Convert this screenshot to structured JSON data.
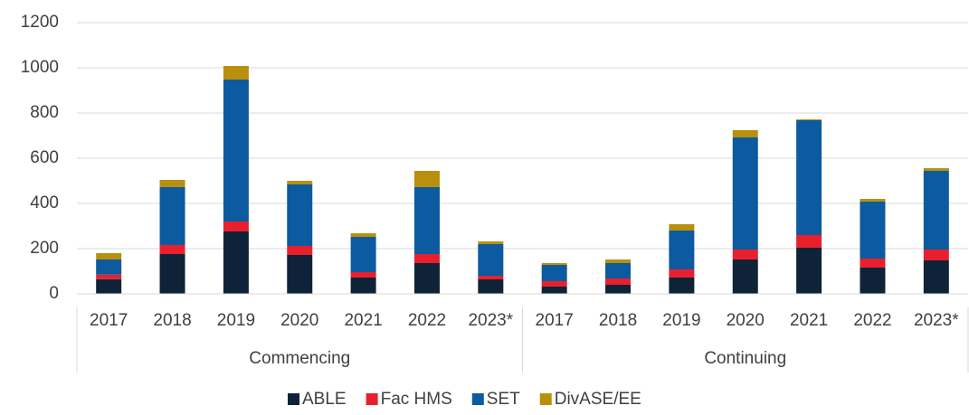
{
  "chart_data": {
    "type": "stacked_bar",
    "groups": [
      {
        "name": "Commencing",
        "categories": [
          "2017",
          "2018",
          "2019",
          "2020",
          "2021",
          "2022",
          "2023*"
        ]
      },
      {
        "name": "Continuing",
        "categories": [
          "2017",
          "2018",
          "2019",
          "2020",
          "2021",
          "2022",
          "2023*"
        ]
      }
    ],
    "series": [
      {
        "name": "ABLE",
        "color": "#0f2338",
        "values": [
          65,
          176,
          276,
          172,
          72,
          136,
          64,
          32,
          40,
          72,
          152,
          204,
          116,
          148
        ]
      },
      {
        "name": "Fac HMS",
        "color": "#e8202e",
        "values": [
          20,
          40,
          44,
          40,
          24,
          40,
          16,
          24,
          28,
          36,
          44,
          56,
          40,
          48
        ]
      },
      {
        "name": "SET",
        "color": "#0c5aa0",
        "values": [
          67,
          256,
          628,
          272,
          156,
          296,
          140,
          72,
          68,
          172,
          496,
          508,
          252,
          348
        ]
      },
      {
        "name": "DivASE/EE",
        "color": "#b8900e",
        "values": [
          28,
          32,
          60,
          16,
          16,
          72,
          12,
          8,
          16,
          28,
          32,
          4,
          12,
          12
        ]
      }
    ],
    "ylim": [
      0,
      1200
    ],
    "yticks": [
      0,
      200,
      400,
      600,
      800,
      1000,
      1200
    ],
    "grid": true,
    "legend": "bottom"
  }
}
